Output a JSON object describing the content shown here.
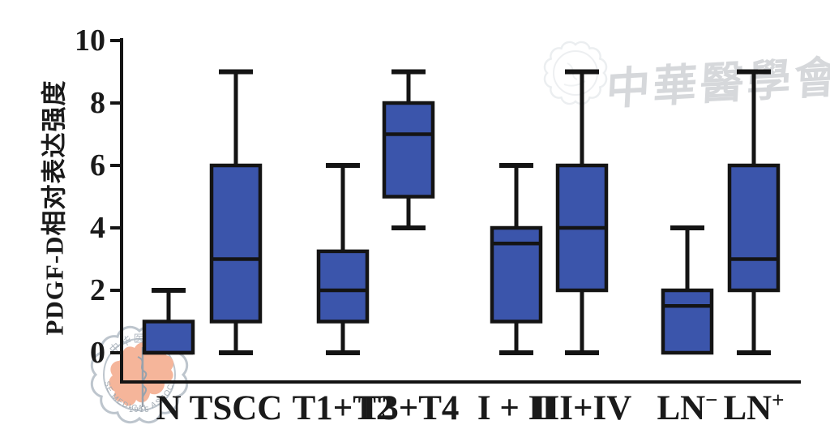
{
  "chart_data": {
    "type": "box",
    "title": "",
    "ylabel": "PDGF-D相对表达强度",
    "xlabel": "",
    "ylim": [
      0,
      10
    ],
    "yticks": [
      0,
      2,
      4,
      6,
      8,
      10
    ],
    "grid": false,
    "legend": null,
    "categories": [
      "N",
      "TSCC",
      "T1+T2",
      "T3+T4",
      "I + II",
      "III+IV",
      "LN⁻",
      "LN⁺"
    ],
    "boxes": [
      {
        "label": "N",
        "min": 0,
        "q1": 0,
        "median": 0,
        "q3": 1,
        "max": 2
      },
      {
        "label": "TSCC",
        "min": 0,
        "q1": 1,
        "median": 3,
        "q3": 6,
        "max": 9
      },
      {
        "label": "T1+T2",
        "min": 0,
        "q1": 1,
        "median": 2,
        "q3": 3.25,
        "max": 6
      },
      {
        "label": "T3+T4",
        "min": 4,
        "q1": 5,
        "median": 7,
        "q3": 8,
        "max": 9
      },
      {
        "label": "I + II",
        "min": 0,
        "q1": 1,
        "median": 3.5,
        "q3": 4,
        "max": 6
      },
      {
        "label": "III+IV",
        "min": 0,
        "q1": 2,
        "median": 4,
        "q3": 6,
        "max": 9
      },
      {
        "label": "LN⁻",
        "min": 0,
        "q1": 0,
        "median": 1.5,
        "q3": 2,
        "max": 4
      },
      {
        "label": "LN⁺",
        "min": 0,
        "q1": 2,
        "median": 3,
        "q3": 6,
        "max": 9
      }
    ],
    "colors": {
      "box_fill": "#3b55ab",
      "line": "#141414",
      "text": "#1a1a1a"
    }
  },
  "watermark": {
    "calligraphy_text": "中華醫學會",
    "seal": {
      "top_arc_text": "中华医学会",
      "year": "1915",
      "bottom_arc_text": "CHINESE MEDICAL ASSOCIATION",
      "ring_color": "#b6bfc8",
      "map_color": "#f5ad90"
    }
  }
}
